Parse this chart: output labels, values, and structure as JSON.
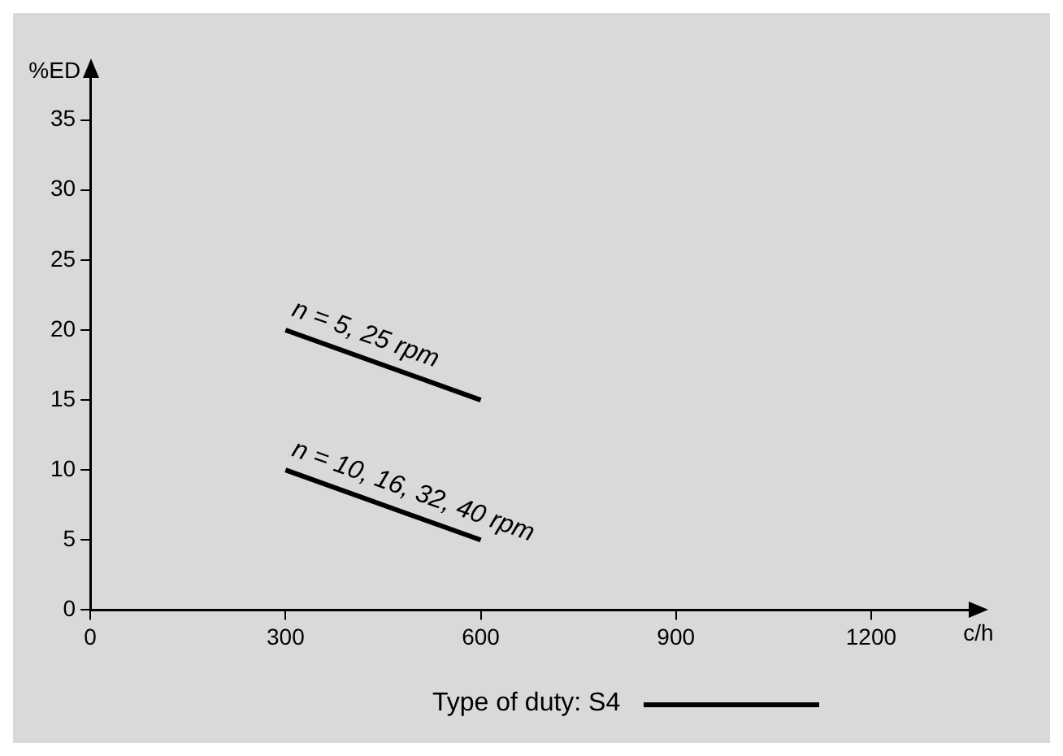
{
  "chart_data": {
    "type": "line",
    "xlabel": "c/h",
    "ylabel": "%ED",
    "x": [
      300,
      600
    ],
    "series": [
      {
        "name": "n = 5, 25 rpm",
        "color": "#000000",
        "values": [
          20,
          15
        ]
      },
      {
        "name": "n = 10, 16, 32, 40 rpm",
        "color": "#000000",
        "values": [
          10,
          5
        ]
      }
    ],
    "xlim": [
      0,
      1350
    ],
    "xticks": [
      0,
      300,
      600,
      900,
      1200
    ],
    "ylim": [
      0,
      38
    ],
    "yticks": [
      0,
      5,
      10,
      15,
      20,
      25,
      30,
      35
    ],
    "grid": false,
    "legend": false,
    "marker": "none",
    "line_style": "solid",
    "annotations": [
      "Type of duty: S4"
    ]
  }
}
